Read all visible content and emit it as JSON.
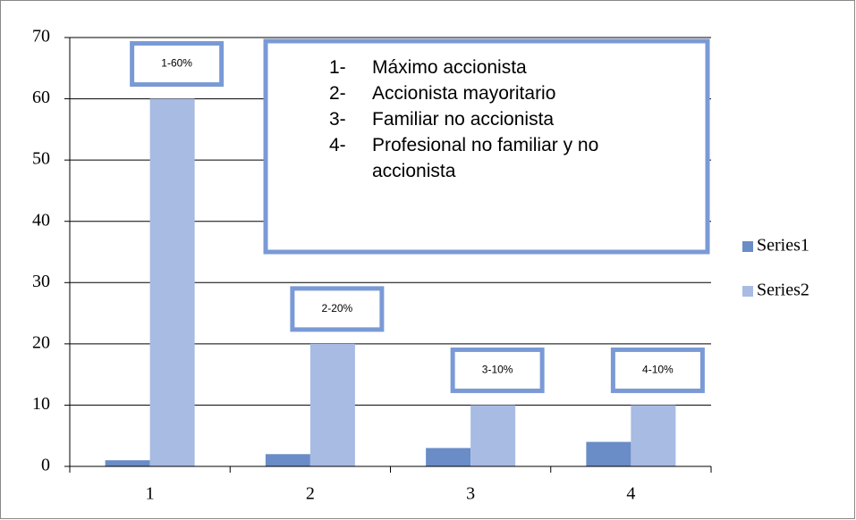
{
  "chart_data": {
    "type": "bar",
    "categories": [
      "1",
      "2",
      "3",
      "4"
    ],
    "series": [
      {
        "name": "Series1",
        "color": "#6a8cc7",
        "values": [
          1,
          2,
          3,
          4
        ]
      },
      {
        "name": "Series2",
        "color": "#a7bbe3",
        "values": [
          60,
          20,
          10,
          10
        ]
      }
    ],
    "ylim": [
      0,
      70
    ],
    "yticks": [
      0,
      10,
      20,
      30,
      40,
      50,
      60,
      70
    ],
    "grid": true,
    "legend": "right",
    "annotations": [
      "1-60%",
      "2-20%",
      "3-10%",
      "4-10%"
    ],
    "notes": [
      {
        "number": "1-",
        "text": "Máximo accionista"
      },
      {
        "number": "2-",
        "text": "Accionista mayoritario"
      },
      {
        "number": "3-",
        "text": "Familiar no accionista"
      },
      {
        "number": "4-",
        "text": "Profesional no familiar y no accionista"
      }
    ]
  }
}
